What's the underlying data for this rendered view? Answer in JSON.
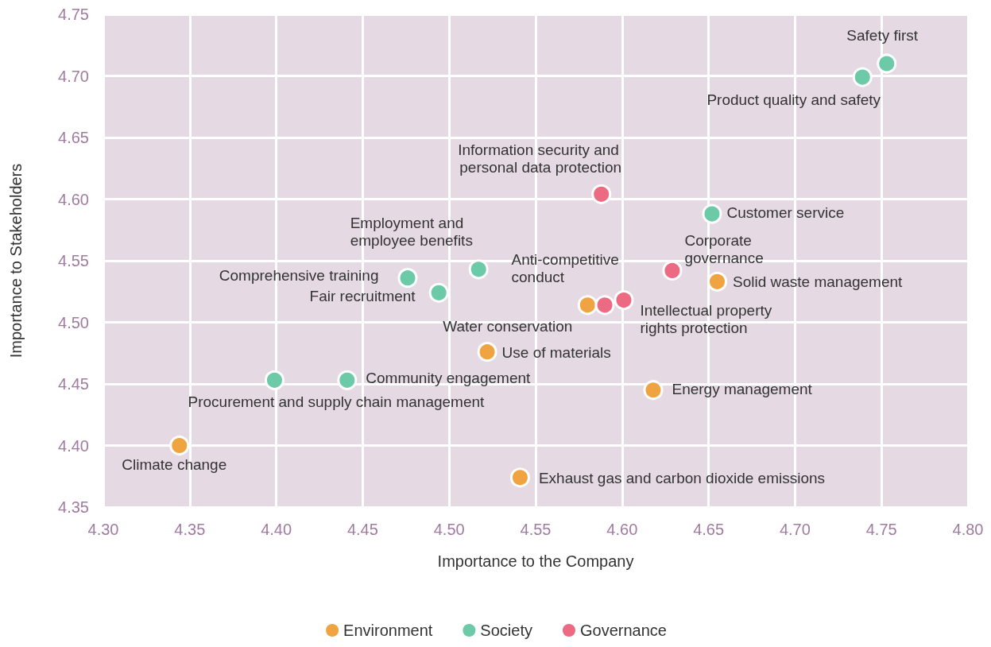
{
  "chart_data": {
    "type": "scatter",
    "xlabel": "Importance to the Company",
    "ylabel": "Importance to Stakeholders",
    "xlim": [
      4.3,
      4.8
    ],
    "xticks": [
      {
        "value": 4.3,
        "label": "4.30"
      },
      {
        "value": 4.35,
        "label": "4.35"
      },
      {
        "value": 4.4,
        "label": "4.40"
      },
      {
        "value": 4.45,
        "label": "4.45"
      },
      {
        "value": 4.5,
        "label": "4.50"
      },
      {
        "value": 4.55,
        "label": "4.55"
      },
      {
        "value": 4.6,
        "label": "4.60"
      },
      {
        "value": 4.65,
        "label": "4.65"
      },
      {
        "value": 4.7,
        "label": "4.70"
      },
      {
        "value": 4.75,
        "label": "4.75"
      },
      {
        "value": 4.8,
        "label": "4.80"
      }
    ],
    "ylim": [
      4.35,
      4.75
    ],
    "yticks": [
      {
        "value": 4.35,
        "label": "4.35"
      },
      {
        "value": 4.4,
        "label": "4.40"
      },
      {
        "value": 4.45,
        "label": "4.45"
      },
      {
        "value": 4.5,
        "label": "4.50"
      },
      {
        "value": 4.55,
        "label": "4.55"
      },
      {
        "value": 4.6,
        "label": "4.60"
      },
      {
        "value": 4.65,
        "label": "4.65"
      },
      {
        "value": 4.7,
        "label": "4.70"
      },
      {
        "value": 4.75,
        "label": "4.75"
      }
    ],
    "grid": true,
    "legend": "bottom",
    "marker": "circle",
    "series": [
      {
        "name": "Environment",
        "color": "#f0a441",
        "x": [
          4.344,
          4.541,
          4.522,
          4.58,
          4.618,
          4.655
        ],
        "values": [
          4.4,
          4.374,
          4.476,
          4.514,
          4.445,
          4.533
        ]
      },
      {
        "name": "Society",
        "color": "#6ccaa8",
        "x": [
          4.753,
          4.739,
          4.652,
          4.517,
          4.476,
          4.494,
          4.441,
          4.399
        ],
        "values": [
          4.71,
          4.699,
          4.588,
          4.543,
          4.536,
          4.524,
          4.453,
          4.453
        ]
      },
      {
        "name": "Governance",
        "color": "#ec6a82",
        "x": [
          4.588,
          4.629,
          4.59,
          4.601
        ],
        "values": [
          4.604,
          4.542,
          4.514,
          4.518
        ]
      }
    ],
    "annotations": [
      {
        "text": "Safety first",
        "x": 4.753,
        "y": 4.71
      },
      {
        "text": "Product quality and safety",
        "x": 4.739,
        "y": 4.699
      },
      {
        "text": "Customer service",
        "x": 4.652,
        "y": 4.588
      },
      {
        "text": "Employment and employee benefits",
        "x": 4.517,
        "y": 4.543
      },
      {
        "text": "Comprehensive training",
        "x": 4.476,
        "y": 4.536
      },
      {
        "text": "Fair recruitment",
        "x": 4.494,
        "y": 4.524
      },
      {
        "text": "Community engagement",
        "x": 4.441,
        "y": 4.453
      },
      {
        "text": "Procurement and supply chain management",
        "x": 4.399,
        "y": 4.453
      },
      {
        "text": "Climate change",
        "x": 4.344,
        "y": 4.4
      },
      {
        "text": "Exhaust gas and carbon dioxide emissions",
        "x": 4.541,
        "y": 4.374
      },
      {
        "text": "Use of materials",
        "x": 4.522,
        "y": 4.476
      },
      {
        "text": "Water conservation",
        "x": 4.58,
        "y": 4.514
      },
      {
        "text": "Energy management",
        "x": 4.618,
        "y": 4.445
      },
      {
        "text": "Solid waste management",
        "x": 4.655,
        "y": 4.533
      },
      {
        "text": "Information security and personal data protection",
        "x": 4.588,
        "y": 4.604
      },
      {
        "text": "Corporate governance",
        "x": 4.629,
        "y": 4.542
      },
      {
        "text": "Anti-competitive conduct",
        "x": 4.59,
        "y": 4.514
      },
      {
        "text": "Intellectual property rights protection",
        "x": 4.601,
        "y": 4.518
      }
    ]
  }
}
